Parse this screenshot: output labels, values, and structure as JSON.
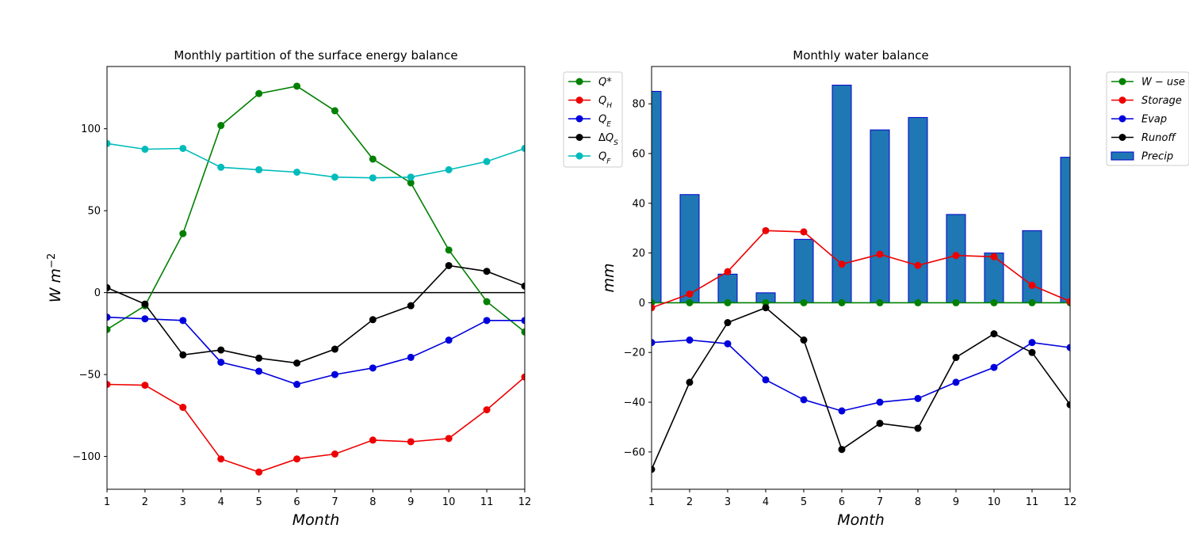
{
  "chart_data": [
    {
      "type": "line",
      "title": "Monthly  partition of the surface energy balance",
      "xlabel": "Month",
      "ylabel": "W m",
      "ylabel_sup": "−2",
      "xlim": [
        1,
        12
      ],
      "ylim": [
        -120,
        138
      ],
      "xticks": [
        1,
        2,
        3,
        4,
        5,
        6,
        7,
        8,
        9,
        10,
        11,
        12
      ],
      "yticks": [
        -100,
        -50,
        0,
        50,
        100
      ],
      "ytick_labels": [
        "−100",
        "−50",
        "0",
        "50",
        "100"
      ],
      "zero_line": true,
      "legend_position": "outside-right",
      "x": [
        1,
        2,
        3,
        4,
        5,
        6,
        7,
        8,
        9,
        10,
        11,
        12
      ],
      "series": [
        {
          "name": "Q*",
          "legend_base": "Q",
          "legend_sup": "*",
          "legend_sub": "",
          "legend_prefix": "",
          "color": "#008000",
          "values": [
            -22.5,
            -8,
            36,
            102,
            121.5,
            126,
            111,
            81.5,
            67,
            26,
            -5.5,
            -24
          ]
        },
        {
          "name": "Q_H",
          "legend_base": "Q",
          "legend_sup": "",
          "legend_sub": "H",
          "legend_prefix": "",
          "color": "#ee0000",
          "values": [
            -56,
            -56.5,
            -70,
            -101.5,
            -109.5,
            -101.5,
            -98.5,
            -90,
            -91,
            -89,
            -71.5,
            -51.5
          ]
        },
        {
          "name": "Q_E",
          "legend_base": "Q",
          "legend_sup": "",
          "legend_sub": "E",
          "legend_prefix": "",
          "color": "#0000dd",
          "values": [
            -15,
            -16,
            -17,
            -42.5,
            -48,
            -56,
            -50,
            -46,
            -39.5,
            -29,
            -17,
            -17
          ]
        },
        {
          "name": "ΔQ_S",
          "legend_base": "Q",
          "legend_sup": "",
          "legend_sub": "S",
          "legend_prefix": "Δ",
          "color": "#000000",
          "values": [
            3,
            -7,
            -38,
            -35,
            -40,
            -43,
            -34.5,
            -16.5,
            -8,
            16.5,
            13,
            4
          ]
        },
        {
          "name": "Q_F",
          "legend_base": "Q",
          "legend_sup": "",
          "legend_sub": "F",
          "legend_prefix": "",
          "color": "#00bbbb",
          "values": [
            91,
            87.5,
            88,
            76.5,
            75,
            73.5,
            70.5,
            70,
            70.5,
            75,
            80,
            88
          ]
        }
      ]
    },
    {
      "type": "bar+line",
      "title": "Monthly water balance",
      "xlabel": "Month",
      "ylabel": "mm",
      "xlim": [
        1,
        12
      ],
      "ylim": [
        -75,
        95
      ],
      "xticks": [
        1,
        2,
        3,
        4,
        5,
        6,
        7,
        8,
        9,
        10,
        11,
        12
      ],
      "yticks": [
        -60,
        -40,
        -20,
        0,
        20,
        40,
        60,
        80
      ],
      "ytick_labels": [
        "−60",
        "−40",
        "−20",
        "0",
        "20",
        "40",
        "60",
        "80"
      ],
      "legend_position": "outside-right",
      "x": [
        1,
        2,
        3,
        4,
        5,
        6,
        7,
        8,
        9,
        10,
        11,
        12
      ],
      "bars": {
        "name": "Precip",
        "color": "#1f77b4",
        "edge": "#0000cc",
        "values": [
          85,
          43.5,
          11.5,
          4,
          25.5,
          87.5,
          69.5,
          74.5,
          35.5,
          20,
          29,
          58.5
        ]
      },
      "series": [
        {
          "name": "W − use",
          "legend_label": "W − use",
          "color": "#008000",
          "values": [
            0,
            0,
            0,
            0,
            0,
            0,
            0,
            0,
            0,
            0,
            0,
            0
          ]
        },
        {
          "name": "Storage",
          "legend_label": "Storage",
          "color": "#ee0000",
          "values": [
            -2,
            3.5,
            12.5,
            29,
            28.5,
            15.5,
            19.5,
            15,
            19,
            18.5,
            7,
            0.5
          ]
        },
        {
          "name": "Evap",
          "legend_label": "Evap",
          "color": "#0000dd",
          "values": [
            -16,
            -15,
            -16.5,
            -31,
            -39,
            -43.5,
            -40,
            -38.5,
            -32,
            -26,
            -16,
            -18
          ]
        },
        {
          "name": "Runoff",
          "legend_label": "Runoff",
          "color": "#000000",
          "values": [
            -67,
            -32,
            -8,
            -2,
            -15,
            -59,
            -48.5,
            -50.5,
            -22,
            -12.5,
            -20,
            -41
          ]
        }
      ]
    }
  ]
}
